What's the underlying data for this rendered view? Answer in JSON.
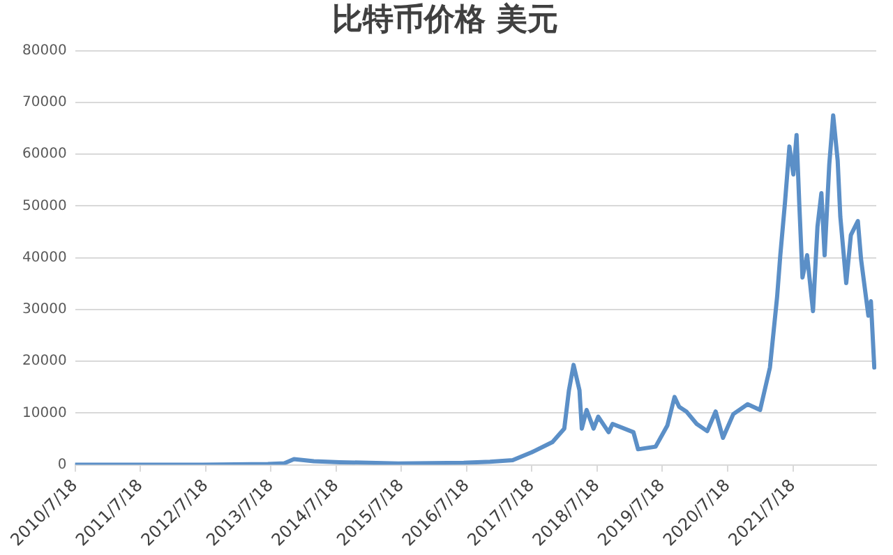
{
  "chart_data": {
    "type": "line",
    "title": "比特币价格 美元",
    "x": [
      "2010-07-18",
      "2012-07-01",
      "2013-01-01",
      "2013-07-01",
      "2013-10-01",
      "2013-11-24",
      "2014-03-15",
      "2014-08-08",
      "2015-07-01",
      "2016-07-01",
      "2016-11-25",
      "2017-04-01",
      "2017-07-16",
      "2017-11-10",
      "2018-01-15",
      "2018-02-10",
      "2018-03-08",
      "2018-04-10",
      "2018-04-23",
      "2018-05-20",
      "2018-06-28",
      "2018-07-24",
      "2018-09-20",
      "2018-10-12",
      "2019-02-06",
      "2019-03-04",
      "2019-06-10",
      "2019-08-15",
      "2019-09-24",
      "2019-10-20",
      "2019-11-29",
      "2020-01-26",
      "2020-03-25",
      "2020-05-11",
      "2020-06-21",
      "2020-08-18",
      "2020-11-06",
      "2021-01-15",
      "2021-03-11",
      "2021-04-20",
      "2021-05-08",
      "2021-06-03",
      "2021-06-28",
      "2021-07-20",
      "2021-08-07",
      "2021-08-22",
      "2021-09-09",
      "2021-10-05",
      "2021-11-07",
      "2021-12-02",
      "2021-12-24",
      "2022-01-11",
      "2022-02-06",
      "2022-02-28",
      "2022-03-25",
      "2022-04-09",
      "2022-05-12",
      "2022-06-07",
      "2022-07-16",
      "2022-08-03",
      "2022-09-13",
      "2022-09-27",
      "2022-10-16"
    ],
    "series": [
      {
        "color": "#5b8fc7",
        "values": [
          0,
          10,
          100,
          150,
          300,
          1100,
          700,
          500,
          250,
          400,
          600,
          900,
          2400,
          4400,
          7000,
          14400,
          19300,
          14400,
          7000,
          10600,
          7000,
          9300,
          6300,
          7900,
          6300,
          3000,
          3500,
          7600,
          13100,
          11200,
          10300,
          7900,
          6500,
          10300,
          5200,
          9800,
          11700,
          10600,
          18800,
          32400,
          40500,
          50600,
          61500,
          56100,
          63700,
          50600,
          36200,
          40500,
          29700,
          46000,
          52500,
          40500,
          58000,
          67500,
          58800,
          47900,
          35100,
          44400,
          47100,
          39700,
          28800,
          31600,
          18800
        ]
      }
    ],
    "xlim": [
      "2010-07-18",
      "2022-10-27"
    ],
    "xticks": [
      {
        "value": "2010-07-18",
        "label": "2010/7/18"
      },
      {
        "value": "2011-07-18",
        "label": "2011/7/18"
      },
      {
        "value": "2012-07-18",
        "label": "2012/7/18"
      },
      {
        "value": "2013-07-18",
        "label": "2013/7/18"
      },
      {
        "value": "2014-07-18",
        "label": "2014/7/18"
      },
      {
        "value": "2015-07-18",
        "label": "2015/7/18"
      },
      {
        "value": "2016-07-18",
        "label": "2016/7/18"
      },
      {
        "value": "2017-07-18",
        "label": "2017/7/18"
      },
      {
        "value": "2018-07-18",
        "label": "2018/7/18"
      },
      {
        "value": "2019-07-18",
        "label": "2019/7/18"
      },
      {
        "value": "2020-07-18",
        "label": "2020/7/18"
      },
      {
        "value": "2021-07-18",
        "label": "2021/7/18"
      }
    ],
    "ylim": [
      0,
      80000
    ],
    "yticks": [
      0,
      10000,
      20000,
      30000,
      40000,
      50000,
      60000,
      70000,
      80000
    ],
    "grid": "y",
    "marker": "none",
    "line_style": "solid"
  }
}
